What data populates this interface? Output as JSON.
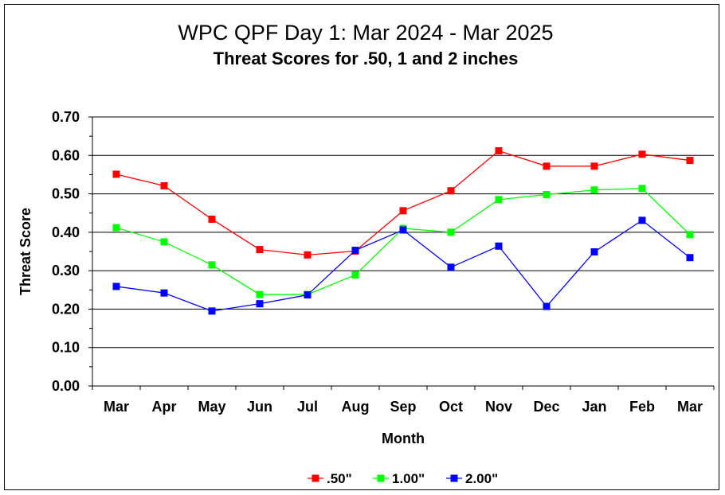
{
  "chart_data": {
    "type": "line",
    "title": "WPC QPF Day 1: Mar 2024 - Mar 2025",
    "subtitle": "Threat Scores for .50, 1 and 2 inches",
    "xlabel": "Month",
    "ylabel": "Threat Score",
    "ylim": [
      0,
      0.7
    ],
    "yticks": [
      "0.00",
      "0.10",
      "0.20",
      "0.30",
      "0.40",
      "0.50",
      "0.60",
      "0.70"
    ],
    "categories": [
      "Mar",
      "Apr",
      "May",
      "Jun",
      "Jul",
      "Aug",
      "Sep",
      "Oct",
      "Nov",
      "Dec",
      "Jan",
      "Feb",
      "Mar"
    ],
    "grid": true,
    "legend_position": "bottom",
    "series": [
      {
        "name": ".50\"",
        "color": "#ff0000",
        "values": [
          0.551,
          0.521,
          0.434,
          0.355,
          0.341,
          0.351,
          0.456,
          0.508,
          0.612,
          0.572,
          0.572,
          0.603,
          0.587
        ]
      },
      {
        "name": "1.00\"",
        "color": "#00ff00",
        "values": [
          0.412,
          0.375,
          0.315,
          0.238,
          0.238,
          0.289,
          0.41,
          0.4,
          0.485,
          0.498,
          0.51,
          0.514,
          0.394
        ]
      },
      {
        "name": "2.00\"",
        "color": "#0000ff",
        "values": [
          0.259,
          0.242,
          0.195,
          0.214,
          0.237,
          0.353,
          0.406,
          0.309,
          0.364,
          0.207,
          0.349,
          0.431,
          0.334
        ]
      }
    ]
  }
}
